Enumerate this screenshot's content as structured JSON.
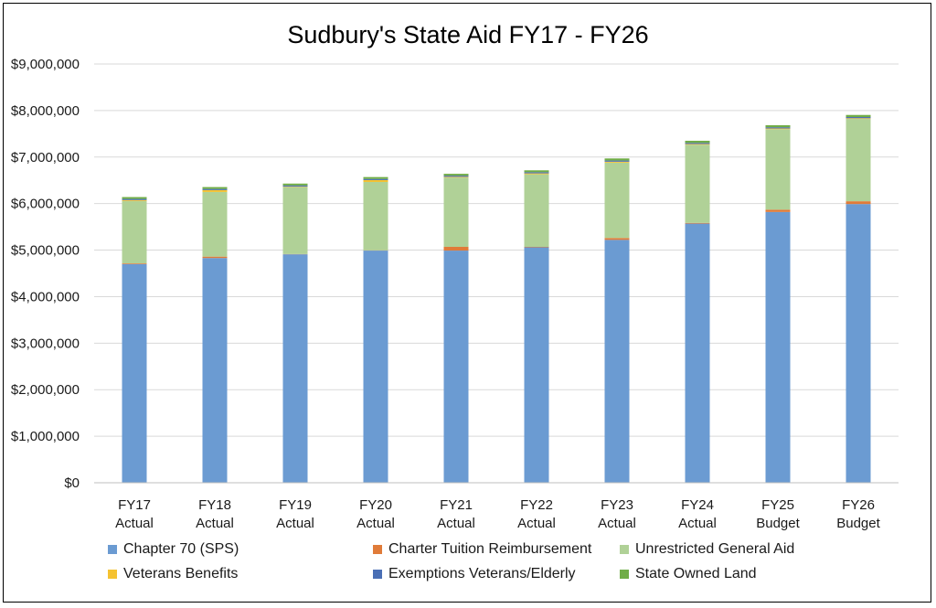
{
  "chart_data": {
    "type": "bar",
    "stacked": true,
    "title": "Sudbury's State Aid FY17 - FY26",
    "categories": [
      [
        "FY17",
        "Actual"
      ],
      [
        "FY18",
        "Actual"
      ],
      [
        "FY19",
        "Actual"
      ],
      [
        "FY20",
        "Actual"
      ],
      [
        "FY21",
        "Actual"
      ],
      [
        "FY22",
        "Actual"
      ],
      [
        "FY23",
        "Actual"
      ],
      [
        "FY24",
        "Actual"
      ],
      [
        "FY25",
        "Budget"
      ],
      [
        "FY26",
        "Budget"
      ]
    ],
    "ylim": [
      0,
      9000000
    ],
    "yticks": [
      0,
      1000000,
      2000000,
      3000000,
      4000000,
      5000000,
      6000000,
      7000000,
      8000000,
      9000000
    ],
    "ytick_labels": [
      "$0",
      "$1,000,000",
      "$2,000,000",
      "$3,000,000",
      "$4,000,000",
      "$5,000,000",
      "$6,000,000",
      "$7,000,000",
      "$8,000,000",
      "$9,000,000"
    ],
    "grid": true,
    "legend_position": "bottom",
    "series": [
      {
        "name": "Chapter 70 (SPS)",
        "color": "#6b9bd2",
        "values": [
          4700000,
          4830000,
          4910000,
          4990000,
          4990000,
          5060000,
          5220000,
          5570000,
          5820000,
          5990000
        ]
      },
      {
        "name": "Charter Tuition Reimbursement",
        "color": "#e07b39",
        "values": [
          15000,
          30000,
          5000,
          5000,
          80000,
          10000,
          40000,
          15000,
          50000,
          60000
        ]
      },
      {
        "name": "Unrestricted General Aid",
        "color": "#b0d197",
        "values": [
          1340000,
          1390000,
          1440000,
          1470000,
          1490000,
          1560000,
          1620000,
          1680000,
          1730000,
          1770000
        ]
      },
      {
        "name": "Veterans Benefits",
        "color": "#f5c231",
        "values": [
          20000,
          40000,
          10000,
          40000,
          15000,
          20000,
          20000,
          15000,
          15000,
          15000
        ]
      },
      {
        "name": "Exemptions Veterans/Elderly",
        "color": "#4a6fb5",
        "values": [
          25000,
          25000,
          25000,
          25000,
          25000,
          25000,
          25000,
          25000,
          25000,
          25000
        ]
      },
      {
        "name": "State Owned Land",
        "color": "#70ad47",
        "values": [
          40000,
          40000,
          40000,
          40000,
          40000,
          40000,
          45000,
          45000,
          45000,
          45000
        ]
      }
    ]
  }
}
